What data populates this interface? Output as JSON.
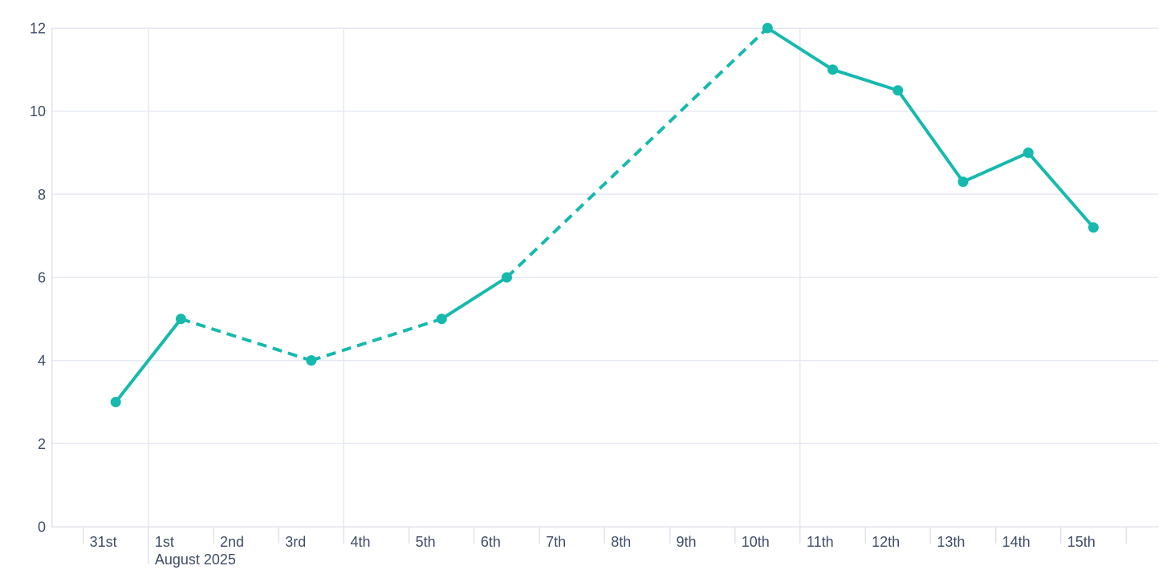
{
  "page": {
    "background": "#ffffff"
  },
  "style": {
    "line_color": "#16b9ae",
    "marker_color": "#16b9ae",
    "label_color": "#3e4c68",
    "gridline_color": "#e6e9f3",
    "axis_line_color": "#e0e3ea",
    "tick_color": "#dfe3ec",
    "background": "#ffffff"
  },
  "chart_data": {
    "type": "line",
    "title": "",
    "xlabel": "",
    "ylabel": "",
    "categories": [
      "31st",
      "1st",
      "2nd",
      "3rd",
      "4th",
      "5th",
      "6th",
      "7th",
      "8th",
      "9th",
      "10th",
      "11th",
      "12th",
      "13th",
      "14th",
      "15th"
    ],
    "month_label": "August 2025",
    "month_label_category_index": 1,
    "values": [
      3,
      5,
      null,
      4,
      null,
      5,
      6,
      null,
      null,
      null,
      12,
      11,
      10.5,
      8.3,
      9,
      7.2
    ],
    "missing_data_rendering": "dashed-bridge-segments",
    "solid_segments": [
      [
        "31st",
        "1st"
      ],
      [
        "5th",
        "6th"
      ],
      [
        "10th",
        "11th",
        "12th",
        "13th",
        "14th",
        "15th"
      ]
    ],
    "dashed_segments": [
      [
        "1st",
        "3rd"
      ],
      [
        "3rd",
        "5th"
      ],
      [
        "6th",
        "10th"
      ]
    ],
    "y_ticks": [
      0,
      2,
      4,
      6,
      8,
      10,
      12
    ],
    "ylim": [
      0,
      12
    ],
    "grid": "horizontal-on, weekly-vertical-on",
    "vertical_gridline_category_indices": [
      1,
      4,
      11
    ],
    "legend": "none",
    "marker": "filled-circle"
  }
}
